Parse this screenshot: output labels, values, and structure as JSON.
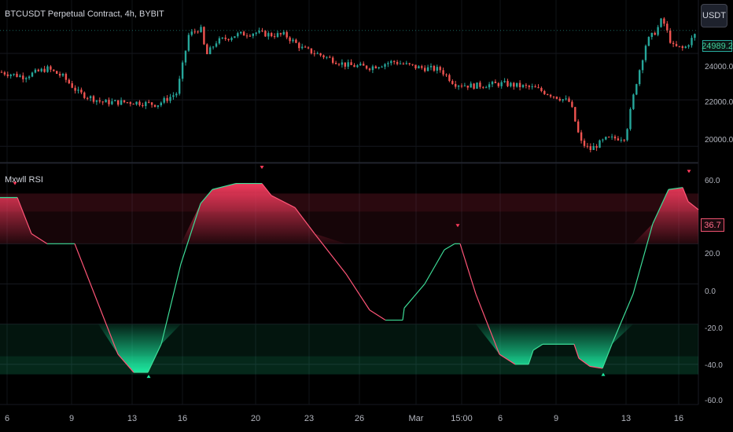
{
  "header": {
    "symbol_title": "BTCUSDT Perpetual Contract, 4h, BYBIT",
    "currency_button": "USDT",
    "last_price": "24989.2"
  },
  "indicator": {
    "name": "Mxwll RSI",
    "last_value": "36.7"
  },
  "price_axis": {
    "ticks": [
      "24000.0",
      "22000.0",
      "20000.0"
    ]
  },
  "rsi_axis": {
    "ticks": [
      "60.0",
      "20.0",
      "0.0",
      "-20.0",
      "-40.0",
      "-60.0"
    ]
  },
  "time_axis": {
    "ticks": [
      "6",
      "9",
      "13",
      "16",
      "20",
      "23",
      "26",
      "Mar",
      "15:00",
      "6",
      "9",
      "13",
      "16"
    ]
  },
  "colors": {
    "background": "#000000",
    "up": "#26a69a",
    "down": "#ef5350",
    "overbought": "#f23a5c",
    "oversold": "#1de9a0"
  },
  "chart_data": [
    {
      "type": "candlestick",
      "title": "BTCUSDT Perpetual Contract, 4h, BYBIT",
      "ylim": [
        19300,
        26300
      ],
      "y_ticks": [
        24000,
        22000,
        20000
      ],
      "x_ticks": [
        "6",
        "9",
        "13",
        "16",
        "20",
        "23",
        "26",
        "Mar",
        "15:00",
        "6",
        "9",
        "13",
        "16"
      ],
      "close_path": [
        [
          0,
          23200
        ],
        [
          30,
          23000
        ],
        [
          60,
          23350
        ],
        [
          80,
          23000
        ],
        [
          100,
          22300
        ],
        [
          130,
          21900
        ],
        [
          170,
          21900
        ],
        [
          200,
          21800
        ],
        [
          225,
          22300
        ],
        [
          240,
          24800
        ],
        [
          255,
          25100
        ],
        [
          262,
          23900
        ],
        [
          275,
          24500
        ],
        [
          300,
          24800
        ],
        [
          325,
          24900
        ],
        [
          345,
          24800
        ],
        [
          362,
          24800
        ],
        [
          385,
          24200
        ],
        [
          410,
          23900
        ],
        [
          440,
          23500
        ],
        [
          470,
          23400
        ],
        [
          500,
          23650
        ],
        [
          530,
          23400
        ],
        [
          560,
          23300
        ],
        [
          578,
          22700
        ],
        [
          600,
          22600
        ],
        [
          640,
          22700
        ],
        [
          680,
          22500
        ],
        [
          710,
          22100
        ],
        [
          725,
          21900
        ],
        [
          738,
          20200
        ],
        [
          750,
          19850
        ],
        [
          770,
          20300
        ],
        [
          795,
          20400
        ],
        [
          808,
          22600
        ],
        [
          822,
          24500
        ],
        [
          835,
          25000
        ],
        [
          842,
          25500
        ],
        [
          855,
          24300
        ],
        [
          870,
          24200
        ],
        [
          888,
          24990
        ]
      ],
      "last": 24989.2
    },
    {
      "type": "line",
      "title": "Mxwll RSI",
      "ylim": [
        -60,
        60
      ],
      "y_ticks": [
        60,
        20,
        0,
        -20,
        -40,
        -60
      ],
      "overbought_zones": [
        [
          20,
          45
        ],
        [
          36,
          45
        ]
      ],
      "oversold_zones": [
        [
          -45,
          -20
        ],
        [
          -45,
          -36
        ]
      ],
      "series": [
        {
          "points": [
            [
              0,
              43
            ],
            [
              22,
              43
            ],
            [
              40,
              25
            ],
            [
              60,
              20
            ],
            [
              95,
              20
            ],
            [
              125,
              -10
            ],
            [
              150,
              -35
            ],
            [
              170,
              -44
            ],
            [
              188,
              -44
            ],
            [
              205,
              -30
            ],
            [
              230,
              10
            ],
            [
              255,
              40
            ],
            [
              270,
              47
            ],
            [
              300,
              50
            ],
            [
              333,
              50
            ],
            [
              345,
              44
            ],
            [
              375,
              38
            ],
            [
              400,
              25
            ],
            [
              440,
              5
            ],
            [
              470,
              -13
            ],
            [
              490,
              -18
            ],
            [
              512,
              -18
            ],
            [
              514,
              -12
            ],
            [
              540,
              0
            ],
            [
              565,
              17
            ],
            [
              578,
              20
            ],
            [
              585,
              20
            ],
            [
              605,
              -5
            ],
            [
              635,
              -35
            ],
            [
              655,
              -40
            ],
            [
              672,
              -40
            ],
            [
              678,
              -33
            ],
            [
              690,
              -30
            ],
            [
              730,
              -30
            ],
            [
              736,
              -37
            ],
            [
              750,
              -41
            ],
            [
              766,
              -42
            ],
            [
              778,
              -30
            ],
            [
              805,
              -5
            ],
            [
              830,
              30
            ],
            [
              850,
              47
            ],
            [
              868,
              48
            ],
            [
              875,
              41
            ],
            [
              888,
              37
            ]
          ],
          "last": 36.7
        }
      ],
      "signal_markers": [
        {
          "x": 19,
          "value": 50,
          "kind": "sell"
        },
        {
          "x": 333,
          "value": 58,
          "kind": "sell"
        },
        {
          "x": 582,
          "value": 29,
          "kind": "sell"
        },
        {
          "x": 876,
          "value": 56,
          "kind": "sell"
        },
        {
          "x": 189,
          "value": -46,
          "kind": "buy"
        },
        {
          "x": 767,
          "value": -45,
          "kind": "buy"
        }
      ]
    }
  ]
}
